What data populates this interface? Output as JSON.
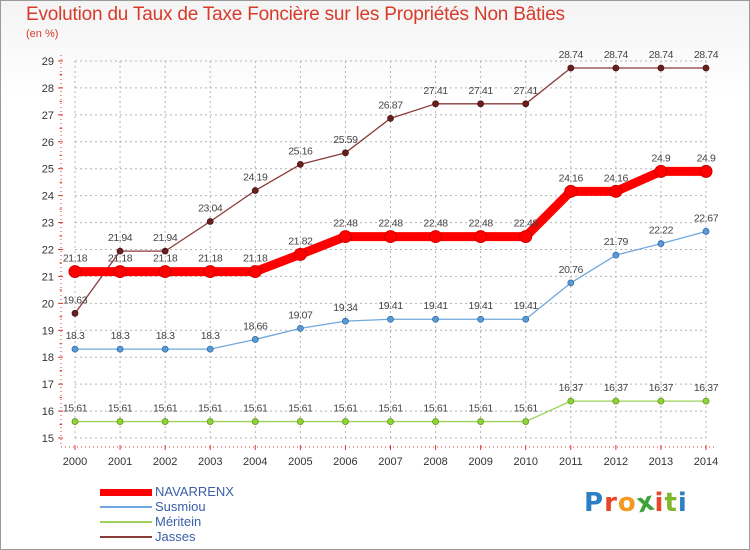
{
  "title": "Evolution du Taux de Taxe Foncière sur les Propriétés Non Bâties",
  "unit_label": "(en %)",
  "brand": "Proxiti",
  "colors": {
    "title": "#d83a2a",
    "grid": "#b4b4b4",
    "axis": "#d83a2a"
  },
  "chart_data": {
    "type": "line",
    "title": "Evolution du Taux de Taxe Foncière sur les Propriétés Non Bâties",
    "ylabel": "(en %)",
    "xlabel": "",
    "x": [
      "2000",
      "2001",
      "2002",
      "2003",
      "2004",
      "2005",
      "2006",
      "2007",
      "2008",
      "2009",
      "2010",
      "2011",
      "2012",
      "2013",
      "2014"
    ],
    "ylim": [
      15,
      29
    ],
    "yticks": [
      "15",
      "16",
      "17",
      "18",
      "19",
      "20",
      "21",
      "22",
      "23",
      "24",
      "25",
      "26",
      "27",
      "28",
      "29"
    ],
    "grid": true,
    "legend_position": "bottom-left",
    "series": [
      {
        "name": "NAVARRENX",
        "color": "#ff0000",
        "values": [
          21.18,
          21.18,
          21.18,
          21.18,
          21.18,
          21.82,
          22.48,
          22.48,
          22.48,
          22.48,
          22.48,
          24.16,
          24.16,
          24.9,
          24.9
        ],
        "labels": [
          "21.18",
          "21.18",
          "21.18",
          "21.18",
          "21.18",
          "21.82",
          "22.48",
          "22.48",
          "22.48",
          "22.48",
          "22.48",
          "24.16",
          "24.16",
          "24.9",
          "24.9"
        ]
      },
      {
        "name": "Susmiou",
        "color": "#6fa8dc",
        "values": [
          18.3,
          18.3,
          18.3,
          18.3,
          18.66,
          19.07,
          19.34,
          19.41,
          19.41,
          19.41,
          19.41,
          20.76,
          21.79,
          22.22,
          22.67
        ],
        "labels": [
          "18.3",
          "18.3",
          "18.3",
          "18.3",
          "18.66",
          "19.07",
          "19.34",
          "19.41",
          "19.41",
          "19.41",
          "19.41",
          "20.76",
          "21.79",
          "22.22",
          "22.67"
        ]
      },
      {
        "name": "Méritein",
        "color": "#9ed05a",
        "values": [
          15.61,
          15.61,
          15.61,
          15.61,
          15.61,
          15.61,
          15.61,
          15.61,
          15.61,
          15.61,
          15.61,
          16.37,
          16.37,
          16.37,
          16.37
        ],
        "labels": [
          "15.61",
          "15.61",
          "15.61",
          "15.61",
          "15.61",
          "15.61",
          "15.61",
          "15.61",
          "15.61",
          "15.61",
          "15.61",
          "16.37",
          "16.37",
          "16.37",
          "16.37"
        ]
      },
      {
        "name": "Jasses",
        "color": "#8b3a3a",
        "values": [
          19.63,
          21.94,
          21.94,
          23.04,
          24.19,
          25.16,
          25.59,
          26.87,
          27.41,
          27.41,
          27.41,
          28.74,
          28.74,
          28.74,
          28.74
        ],
        "labels": [
          "19.63",
          "21.94",
          "21.94",
          "23.04",
          "24.19",
          "25.16",
          "25.59",
          "26.87",
          "27.41",
          "27.41",
          "27.41",
          "28.74",
          "28.74",
          "28.74",
          "28.74"
        ]
      }
    ]
  },
  "legend": [
    {
      "label": "NAVARRENX",
      "color": "#ff0000",
      "text_color": "#3a5fa8",
      "thickness": 7
    },
    {
      "label": "Susmiou",
      "color": "#6fa8dc",
      "text_color": "#3a5fa8",
      "thickness": 2
    },
    {
      "label": "Méritein",
      "color": "#9ed05a",
      "text_color": "#3a5fa8",
      "thickness": 2
    },
    {
      "label": "Jasses",
      "color": "#8b3a3a",
      "text_color": "#3a5fa8",
      "thickness": 2
    }
  ]
}
